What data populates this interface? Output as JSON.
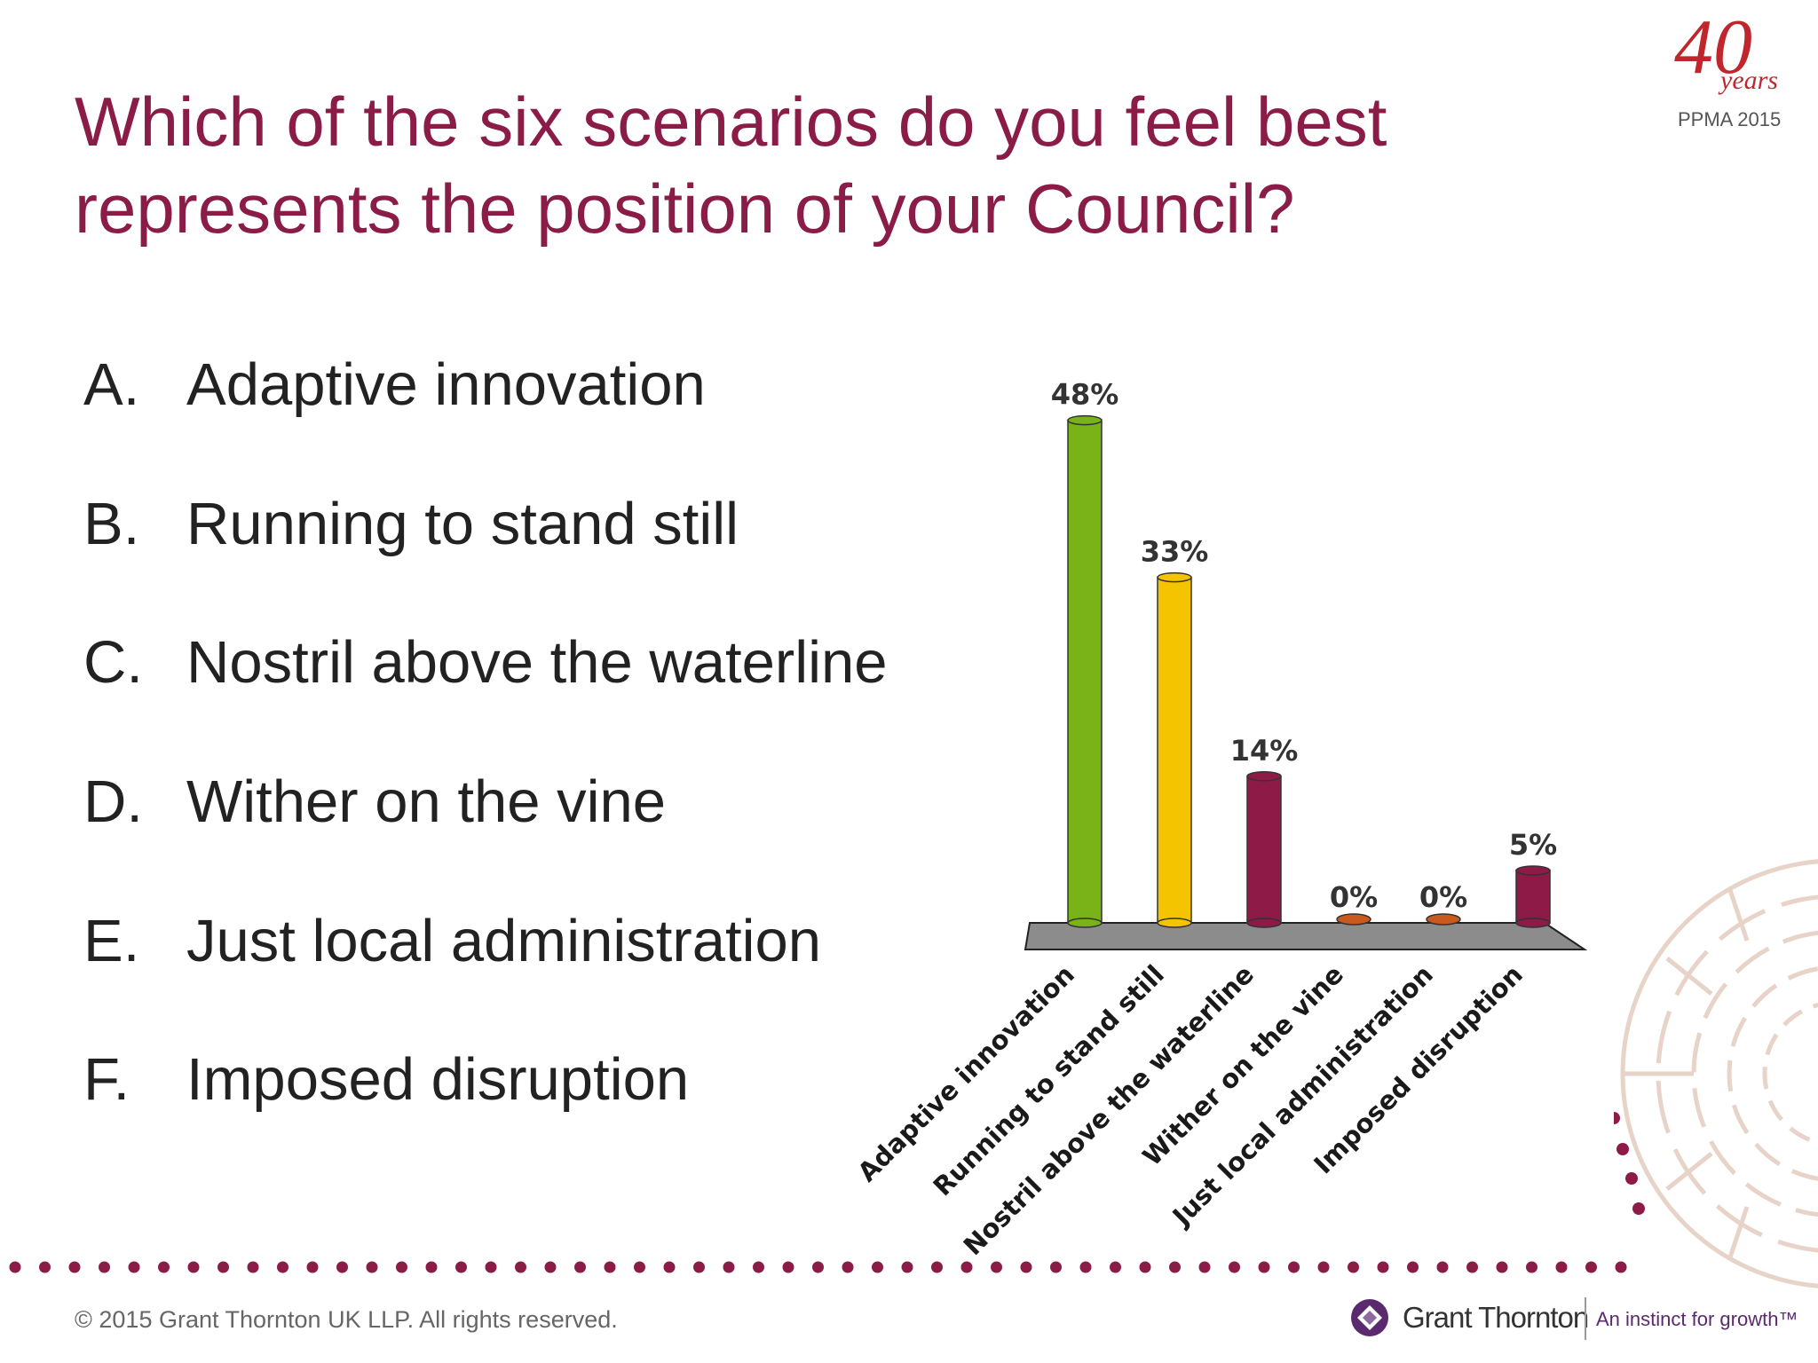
{
  "slide": {
    "title_line1": "Which of the six scenarios do you feel best",
    "title_line2": "represents the position of your Council?",
    "badge": {
      "number": "40",
      "word": "years",
      "event": "PPMA 2015"
    },
    "footer": "© 2015 Grant Thornton UK LLP. All rights reserved.",
    "brand": {
      "name": "Grant Thornton",
      "tagline": "An instinct for growth™",
      "color": "#5b2a6e"
    }
  },
  "options": [
    {
      "letter": "A.",
      "label": "Adaptive innovation"
    },
    {
      "letter": "B.",
      "label": "Running to stand still"
    },
    {
      "letter": "C.",
      "label": "Nostril above the waterline"
    },
    {
      "letter": "D.",
      "label": "Wither on the vine"
    },
    {
      "letter": "E.",
      "label": "Just local administration"
    },
    {
      "letter": "F.",
      "label": "Imposed disruption"
    }
  ],
  "chart_data": {
    "type": "bar",
    "categories": [
      "Adaptive innovation",
      "Running to stand still",
      "Nostril above the waterline",
      "Wither on the vine",
      "Just local administration",
      "Imposed disruption"
    ],
    "values": [
      48,
      33,
      14,
      0,
      0,
      5
    ],
    "value_labels": [
      "48%",
      "33%",
      "14%",
      "0%",
      "0%",
      "5%"
    ],
    "colors": [
      "#7ab317",
      "#f5c400",
      "#8e1b47",
      "#c9591d",
      "#c9591d",
      "#8e1b47"
    ],
    "ylim": [
      0,
      50
    ],
    "title": "",
    "xlabel": "",
    "ylabel": ""
  },
  "colors": {
    "accent": "#8a1c47",
    "floor": "#8c8c8c"
  }
}
